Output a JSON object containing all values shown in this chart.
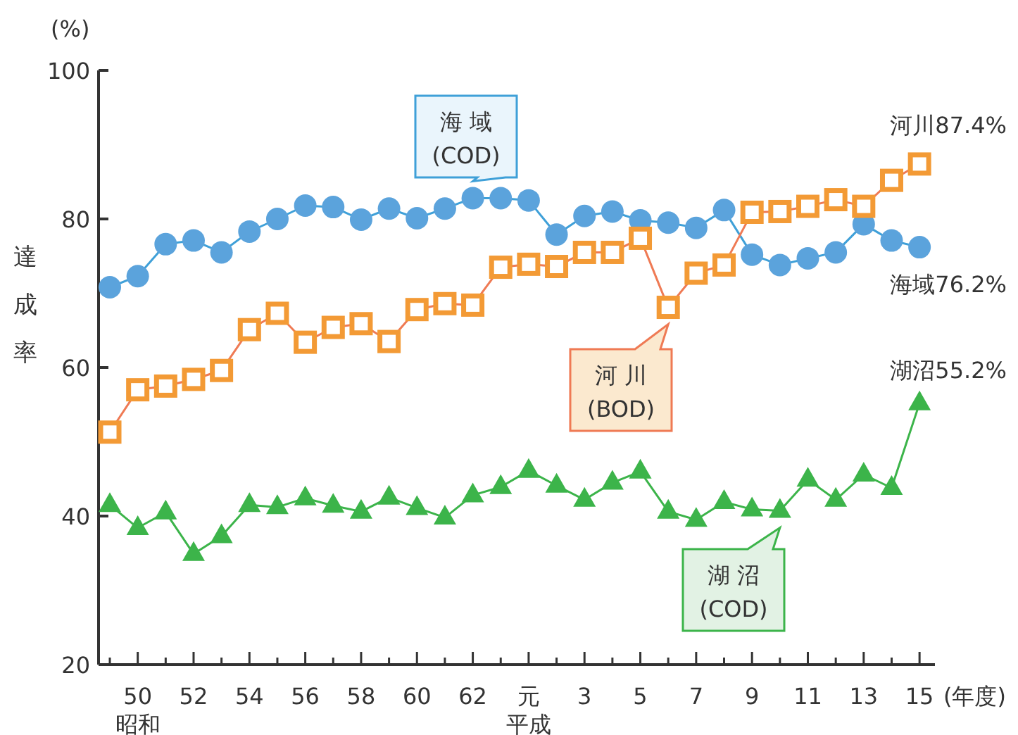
{
  "chart_data": {
    "type": "line",
    "ylabel": "達成率",
    "xlabel": "(年度)",
    "categories": [
      null,
      "50",
      null,
      "52",
      null,
      "54",
      null,
      "56",
      null,
      "58",
      null,
      "60",
      null,
      "62",
      null,
      "元",
      null,
      "3",
      null,
      "5",
      null,
      "7",
      null,
      "9",
      null,
      "11",
      null,
      "13",
      null,
      "15"
    ],
    "ylim": [
      20,
      100
    ],
    "yticks": [
      20,
      40,
      60,
      80,
      100
    ],
    "series": [
      {
        "name": "海 域\n(COD)",
        "color": "#5ba3dc",
        "marker": "circle",
        "values": [
          70.8,
          72.3,
          76.6,
          77.1,
          75.5,
          78.3,
          80.0,
          81.8,
          81.6,
          79.9,
          81.4,
          80.1,
          81.4,
          82.8,
          82.8,
          82.5,
          77.9,
          80.4,
          81.0,
          79.8,
          79.5,
          78.8,
          81.2,
          75.2,
          73.8,
          74.7,
          75.5,
          79.3,
          77.1,
          76.2
        ]
      },
      {
        "name": "河 川\n(BOD)",
        "color": "#f39a35",
        "marker": "square",
        "values": [
          51.3,
          57.0,
          57.5,
          58.4,
          59.6,
          65.1,
          67.3,
          63.4,
          65.4,
          65.9,
          63.5,
          67.8,
          68.6,
          68.4,
          73.5,
          73.9,
          73.6,
          75.5,
          75.5,
          77.4,
          68.1,
          72.7,
          73.8,
          80.9,
          81.0,
          81.7,
          82.6,
          81.7,
          85.2,
          87.4
        ]
      },
      {
        "name": "湖 沼\n(COD)",
        "color": "#3cb44a",
        "marker": "triangle",
        "values": [
          41.5,
          38.4,
          40.5,
          34.9,
          37.3,
          41.5,
          41.2,
          42.4,
          41.4,
          40.6,
          42.5,
          41.1,
          39.8,
          42.8,
          43.9,
          46.1,
          44.1,
          42.2,
          44.5,
          46.0,
          40.6,
          39.5,
          41.9,
          40.9,
          40.7,
          44.9,
          42.2,
          45.6,
          43.8,
          55.2
        ]
      }
    ],
    "annotations": [
      "(%)",
      "昭和",
      "平成",
      {
        "text": "河川87.4%",
        "x": "15",
        "y": 87.4
      },
      {
        "text": "海域76.2%",
        "x": "15",
        "y": 76.2
      },
      {
        "text": "湖沼55.2%",
        "x": "15",
        "y": 55.2
      }
    ]
  }
}
